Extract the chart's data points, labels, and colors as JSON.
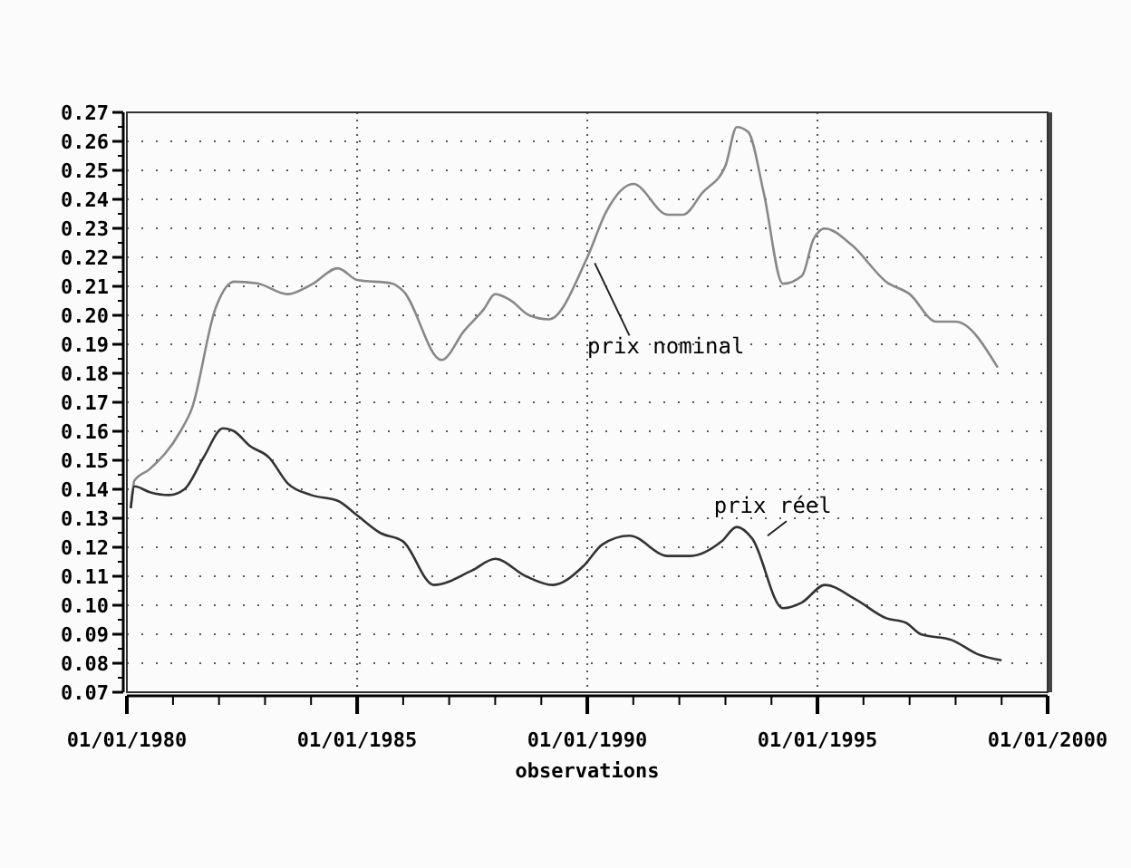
{
  "chart_data": {
    "type": "line",
    "xlabel": "observations",
    "xlim": [
      "1980-01-01",
      "2000-01-01"
    ],
    "ylim": [
      0.07,
      0.27
    ],
    "xticks": [
      {
        "value": "1980-01-01",
        "label": "01/01/1980"
      },
      {
        "value": "1981-01-01",
        "label": null
      },
      {
        "value": "1982-01-01",
        "label": null
      },
      {
        "value": "1983-01-01",
        "label": null
      },
      {
        "value": "1984-01-01",
        "label": null
      },
      {
        "value": "1985-01-01",
        "label": "01/01/1985"
      },
      {
        "value": "1986-01-01",
        "label": null
      },
      {
        "value": "1987-01-01",
        "label": null
      },
      {
        "value": "1988-01-01",
        "label": null
      },
      {
        "value": "1989-01-01",
        "label": null
      },
      {
        "value": "1990-01-01",
        "label": "01/01/1990"
      },
      {
        "value": "1991-01-01",
        "label": null
      },
      {
        "value": "1992-01-01",
        "label": null
      },
      {
        "value": "1993-01-01",
        "label": null
      },
      {
        "value": "1994-01-01",
        "label": null
      },
      {
        "value": "1995-01-01",
        "label": "01/01/1995"
      },
      {
        "value": "1996-01-01",
        "label": null
      },
      {
        "value": "1997-01-01",
        "label": null
      },
      {
        "value": "1998-01-01",
        "label": null
      },
      {
        "value": "1999-01-01",
        "label": null
      },
      {
        "value": "2000-01-01",
        "label": "01/01/2000"
      }
    ],
    "yticks": [
      {
        "value": 0.07,
        "label": "0.07"
      },
      {
        "value": 0.08,
        "label": "0.08"
      },
      {
        "value": 0.09,
        "label": "0.09"
      },
      {
        "value": 0.1,
        "label": "0.10"
      },
      {
        "value": 0.11,
        "label": "0.11"
      },
      {
        "value": 0.12,
        "label": "0.12"
      },
      {
        "value": 0.13,
        "label": "0.13"
      },
      {
        "value": 0.14,
        "label": "0.14"
      },
      {
        "value": 0.15,
        "label": "0.15"
      },
      {
        "value": 0.16,
        "label": "0.16"
      },
      {
        "value": 0.17,
        "label": "0.17"
      },
      {
        "value": 0.18,
        "label": "0.18"
      },
      {
        "value": 0.19,
        "label": "0.19"
      },
      {
        "value": 0.2,
        "label": "0.20"
      },
      {
        "value": 0.21,
        "label": "0.21"
      },
      {
        "value": 0.22,
        "label": "0.22"
      },
      {
        "value": 0.23,
        "label": "0.23"
      },
      {
        "value": 0.24,
        "label": "0.24"
      },
      {
        "value": 0.25,
        "label": "0.25"
      },
      {
        "value": 0.26,
        "label": "0.26"
      },
      {
        "value": 0.27,
        "label": "0.27"
      }
    ],
    "grid": true,
    "line_style": "solid",
    "series": [
      {
        "name": "prix nominal",
        "color": "#888888",
        "x": [
          "1980-02",
          "1980-03",
          "1980-07",
          "1981-03",
          "1981-06",
          "1981-12",
          "1982-05",
          "1982-11",
          "1983-07",
          "1984-01",
          "1984-08",
          "1985-01",
          "1985-10",
          "1986-01",
          "1986-11",
          "1987-05",
          "1987-10",
          "1988-01",
          "1988-05",
          "1988-10",
          "1989-03",
          "1990-01",
          "1990-06",
          "1991-01",
          "1991-10",
          "1992-02",
          "1992-07",
          "1993-01",
          "1993-04",
          "1993-07",
          "1993-11",
          "1994-04",
          "1994-09",
          "1994-12",
          "1995-03",
          "1995-10",
          "1996-07",
          "1997-01",
          "1997-08",
          "1998-01",
          "1998-12"
        ],
        "values": [
          0.1335,
          0.143,
          0.147,
          0.16,
          0.168,
          0.202,
          0.2116,
          0.211,
          0.2073,
          0.2105,
          0.2162,
          0.2122,
          0.211,
          0.2084,
          0.1846,
          0.1947,
          0.202,
          0.2073,
          0.2052,
          0.1999,
          0.1986,
          0.22,
          0.2358,
          0.2453,
          0.2347,
          0.2347,
          0.2422,
          0.2516,
          0.2649,
          0.2632,
          0.2422,
          0.2109,
          0.2137,
          0.2263,
          0.2299,
          0.2242,
          0.2115,
          0.2073,
          0.1978,
          0.1978,
          0.182
        ]
      },
      {
        "name": "prix réel",
        "color": "#333333",
        "x": [
          "1980-02",
          "1980-03",
          "1980-07",
          "1980-12",
          "1981-04",
          "1981-09",
          "1982-02",
          "1982-05",
          "1982-09",
          "1983-02",
          "1983-07",
          "1984-01",
          "1984-08",
          "1985-01",
          "1985-07",
          "1986-01",
          "1986-09",
          "1987-07",
          "1988-01",
          "1988-09",
          "1989-04",
          "1989-12",
          "1990-05",
          "1990-12",
          "1991-10",
          "1992-04",
          "1992-12",
          "1993-04",
          "1993-08",
          "1994-04",
          "1994-09",
          "1995-03",
          "1995-11",
          "1996-07",
          "1996-12",
          "1997-04",
          "1997-12",
          "1998-07",
          "1999-01"
        ],
        "values": [
          0.1335,
          0.141,
          0.139,
          0.138,
          0.14,
          0.151,
          0.161,
          0.16,
          0.155,
          0.151,
          0.142,
          0.138,
          0.136,
          0.131,
          0.125,
          0.122,
          0.107,
          0.112,
          0.116,
          0.11,
          0.107,
          0.1135,
          0.121,
          0.124,
          0.117,
          0.117,
          0.122,
          0.127,
          0.123,
          0.099,
          0.101,
          0.107,
          0.102,
          0.0955,
          0.094,
          0.09,
          0.088,
          0.083,
          0.081
        ]
      }
    ]
  }
}
